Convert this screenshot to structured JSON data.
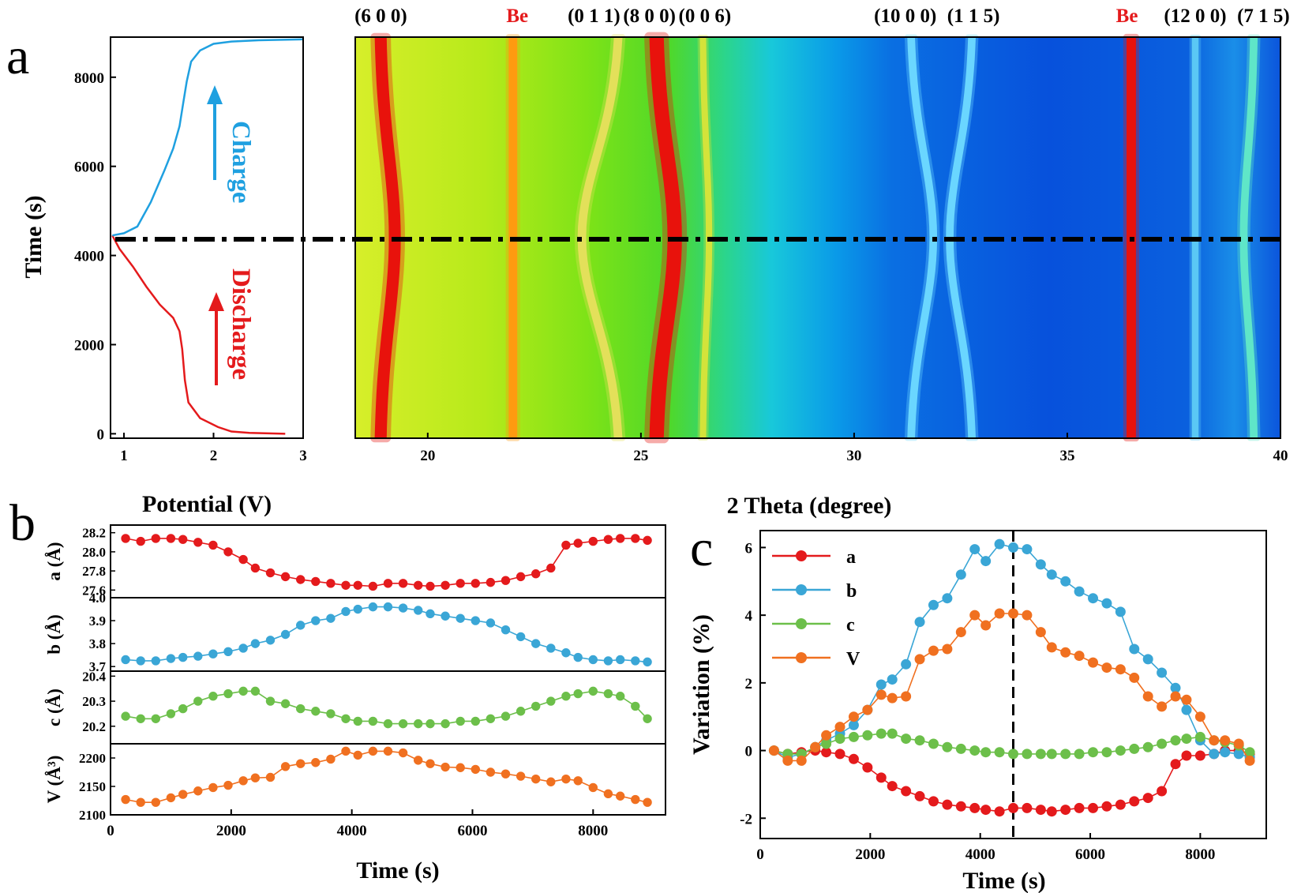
{
  "figure": {
    "panel_labels": [
      "a",
      "b",
      "c"
    ]
  },
  "colors": {
    "charge": "#1fa0e0",
    "discharge": "#e41a1c",
    "a": "#e41a1c",
    "b": "#3aa6d6",
    "c": "#6cbf4a",
    "V": "#f07020"
  },
  "chart_data": [
    {
      "id": "a_left",
      "type": "line",
      "xlabel": "Potential (V)",
      "ylabel": "Time (s)",
      "xlim": [
        0.85,
        3.0
      ],
      "ylim": [
        -100,
        8900
      ],
      "xticks": [
        1,
        2,
        3
      ],
      "yticks": [
        0,
        2000,
        4000,
        6000,
        8000
      ],
      "annotations": [
        "Charge",
        "Discharge"
      ],
      "series": [
        {
          "name": "Discharge",
          "x": [
            2.8,
            2.4,
            2.2,
            2.05,
            1.85,
            1.72,
            1.68,
            1.65,
            1.62,
            1.55,
            1.4,
            1.25,
            1.1,
            0.95,
            0.87
          ],
          "y": [
            0,
            20,
            50,
            150,
            350,
            700,
            1200,
            1900,
            2300,
            2600,
            2900,
            3300,
            3750,
            4150,
            4450
          ]
        },
        {
          "name": "Charge",
          "x": [
            0.87,
            1.0,
            1.15,
            1.3,
            1.45,
            1.55,
            1.62,
            1.66,
            1.7,
            1.75,
            1.85,
            2.0,
            2.2,
            2.5,
            3.0
          ],
          "y": [
            4450,
            4500,
            4650,
            5200,
            5900,
            6400,
            6900,
            7400,
            7900,
            8350,
            8600,
            8750,
            8800,
            8830,
            8850
          ]
        }
      ]
    },
    {
      "id": "a_map",
      "type": "heatmap",
      "xlabel": "2 Theta (degree)",
      "xlim": [
        18.3,
        40
      ],
      "xticks": [
        20,
        25,
        30,
        35,
        40
      ],
      "ylim": [
        0,
        8900
      ],
      "reference_time": 4450,
      "peaks": [
        {
          "label": "(6 0 0)",
          "pos": 19.0,
          "color": "#e8120c",
          "width": 0.28,
          "label_pos": 18.9
        },
        {
          "label": "Be",
          "pos": 22.0,
          "color": "#ff9a10",
          "width": 0.2,
          "label_pos": 22.1,
          "red": true
        },
        {
          "label": "(0 1 1)",
          "pos": 24.2,
          "color": "#e3e05a",
          "width": 0.2,
          "label_pos": 23.9
        },
        {
          "label": "(8 0 0)",
          "pos": 25.5,
          "color": "#e8120c",
          "width": 0.34,
          "label_pos": 25.2
        },
        {
          "label": "(0 0 6)",
          "pos": 26.5,
          "color": "#d4e33a",
          "width": 0.15,
          "label_pos": 26.5
        },
        {
          "label": "(10 0 0)",
          "pos": 31.5,
          "color": "#6ad6ff",
          "width": 0.18,
          "label_pos": 31.2
        },
        {
          "label": "(1 1 5)",
          "pos": 32.6,
          "color": "#6ad6ff",
          "width": 0.18,
          "label_pos": 32.8
        },
        {
          "label": "Be",
          "pos": 36.5,
          "color": "#e8120c",
          "width": 0.22,
          "label_pos": 36.4,
          "red": true
        },
        {
          "label": "(12 0 0)",
          "pos": 38.0,
          "color": "#5ac8f5",
          "width": 0.16,
          "label_pos": 38.0
        },
        {
          "label": "(7 1 5)",
          "pos": 39.3,
          "color": "#5fe6c8",
          "width": 0.18,
          "label_pos": 39.6
        }
      ]
    },
    {
      "id": "b",
      "type": "line",
      "xlabel": "Time (s)",
      "xlim": [
        0,
        9200
      ],
      "xticks": [
        0,
        2000,
        4000,
        6000,
        8000
      ],
      "x": [
        250,
        500,
        750,
        1000,
        1200,
        1450,
        1700,
        1950,
        2200,
        2400,
        2650,
        2900,
        3150,
        3400,
        3650,
        3900,
        4100,
        4350,
        4600,
        4850,
        5100,
        5300,
        5550,
        5800,
        6050,
        6300,
        6550,
        6800,
        7050,
        7300,
        7550,
        7750,
        8000,
        8250,
        8450,
        8700,
        8900
      ],
      "subplots": [
        {
          "name": "a",
          "ylabel": "a (Å)",
          "color": "#e41a1c",
          "ylim": [
            27.52,
            28.28
          ],
          "yticks": [
            "27.6",
            "27.8",
            "28.0",
            "28.2"
          ],
          "values": [
            28.14,
            28.11,
            28.14,
            28.14,
            28.13,
            28.1,
            28.07,
            28.0,
            27.92,
            27.83,
            27.78,
            27.74,
            27.71,
            27.69,
            27.67,
            27.65,
            27.65,
            27.64,
            27.67,
            27.67,
            27.65,
            27.64,
            27.65,
            27.67,
            27.67,
            27.68,
            27.7,
            27.74,
            27.77,
            27.83,
            28.07,
            28.09,
            28.11,
            28.13,
            28.14,
            28.14,
            28.12
          ]
        },
        {
          "name": "b",
          "ylabel": "b (Å)",
          "color": "#3aa6d6",
          "ylim": [
            3.68,
            4.0
          ],
          "yticks": [
            "3.7",
            "3.8",
            "3.9",
            "4.0"
          ],
          "values": [
            3.73,
            3.725,
            3.725,
            3.735,
            3.74,
            3.745,
            3.755,
            3.765,
            3.78,
            3.8,
            3.815,
            3.84,
            3.88,
            3.9,
            3.91,
            3.94,
            3.95,
            3.96,
            3.96,
            3.955,
            3.945,
            3.93,
            3.92,
            3.91,
            3.9,
            3.89,
            3.86,
            3.83,
            3.8,
            3.78,
            3.76,
            3.74,
            3.73,
            3.725,
            3.73,
            3.725,
            3.72
          ]
        },
        {
          "name": "c",
          "ylabel": "c (Å)",
          "color": "#6cbf4a",
          "ylim": [
            20.13,
            20.42
          ],
          "yticks": [
            "20.2",
            "20.3",
            "20.4"
          ],
          "values": [
            20.24,
            20.23,
            20.23,
            20.25,
            20.27,
            20.3,
            20.32,
            20.33,
            20.34,
            20.34,
            20.3,
            20.29,
            20.27,
            20.26,
            20.25,
            20.23,
            20.22,
            20.22,
            20.21,
            20.21,
            20.21,
            20.21,
            20.21,
            20.22,
            20.22,
            20.23,
            20.24,
            20.26,
            20.28,
            20.3,
            20.32,
            20.33,
            20.34,
            20.33,
            20.32,
            20.28,
            20.23
          ]
        },
        {
          "name": "V",
          "ylabel": "V (Å³)",
          "color": "#f07020",
          "ylim": [
            2100,
            2225
          ],
          "yticks": [
            "2100",
            "2150",
            "2200"
          ],
          "values": [
            2127,
            2122,
            2122,
            2130,
            2136,
            2142,
            2148,
            2152,
            2160,
            2165,
            2166,
            2185,
            2190,
            2192,
            2198,
            2212,
            2205,
            2212,
            2212,
            2209,
            2196,
            2190,
            2184,
            2183,
            2180,
            2175,
            2172,
            2168,
            2163,
            2158,
            2163,
            2160,
            2148,
            2137,
            2133,
            2127,
            2122
          ]
        }
      ]
    },
    {
      "id": "c",
      "type": "line",
      "xlabel": "Time (s)",
      "ylabel": "Variation (%)",
      "xlim": [
        0,
        9200
      ],
      "ylim": [
        -2.6,
        6.5
      ],
      "xticks": [
        0,
        2000,
        4000,
        6000,
        8000
      ],
      "yticks": [
        -2,
        0,
        2,
        4,
        6
      ],
      "reference_time": 4600,
      "x": [
        250,
        500,
        750,
        1000,
        1200,
        1450,
        1700,
        1950,
        2200,
        2400,
        2650,
        2900,
        3150,
        3400,
        3650,
        3900,
        4100,
        4350,
        4600,
        4850,
        5100,
        5300,
        5550,
        5800,
        6050,
        6300,
        6550,
        6800,
        7050,
        7300,
        7550,
        7750,
        8000,
        8250,
        8450,
        8700,
        8900
      ],
      "series": [
        {
          "name": "a",
          "values": [
            0.0,
            -0.1,
            -0.05,
            0.0,
            -0.05,
            -0.1,
            -0.25,
            -0.5,
            -0.8,
            -1.05,
            -1.2,
            -1.35,
            -1.5,
            -1.6,
            -1.65,
            -1.7,
            -1.75,
            -1.8,
            -1.7,
            -1.7,
            -1.75,
            -1.8,
            -1.75,
            -1.7,
            -1.7,
            -1.65,
            -1.6,
            -1.5,
            -1.4,
            -1.2,
            -0.4,
            -0.15,
            -0.15,
            -0.1,
            0.0,
            0.0,
            -0.1
          ]
        },
        {
          "name": "b",
          "values": [
            0.0,
            -0.2,
            -0.1,
            0.1,
            0.3,
            0.5,
            0.75,
            1.2,
            1.95,
            2.1,
            2.55,
            3.8,
            4.3,
            4.5,
            5.2,
            5.95,
            5.6,
            6.1,
            6.0,
            5.95,
            5.5,
            5.2,
            5.0,
            4.7,
            4.5,
            4.35,
            4.1,
            3.0,
            2.7,
            2.3,
            1.85,
            1.2,
            0.3,
            -0.1,
            -0.05,
            -0.1,
            -0.2
          ]
        },
        {
          "name": "c",
          "values": [
            0.0,
            -0.1,
            -0.1,
            0.1,
            0.2,
            0.35,
            0.4,
            0.45,
            0.5,
            0.5,
            0.35,
            0.3,
            0.2,
            0.1,
            0.05,
            0.0,
            -0.05,
            -0.05,
            -0.1,
            -0.1,
            -0.1,
            -0.1,
            -0.1,
            -0.1,
            -0.05,
            -0.05,
            0.0,
            0.05,
            0.1,
            0.2,
            0.3,
            0.35,
            0.4,
            0.3,
            0.25,
            0.15,
            -0.05
          ]
        },
        {
          "name": "V",
          "values": [
            0.0,
            -0.3,
            -0.3,
            0.1,
            0.45,
            0.7,
            1.0,
            1.2,
            1.65,
            1.55,
            1.6,
            2.7,
            2.95,
            3.0,
            3.5,
            4.0,
            3.7,
            4.05,
            4.05,
            4.0,
            3.5,
            3.05,
            2.9,
            2.8,
            2.6,
            2.45,
            2.4,
            2.15,
            1.6,
            1.3,
            1.6,
            1.5,
            1.0,
            0.3,
            0.3,
            0.2,
            -0.3
          ]
        }
      ]
    }
  ]
}
